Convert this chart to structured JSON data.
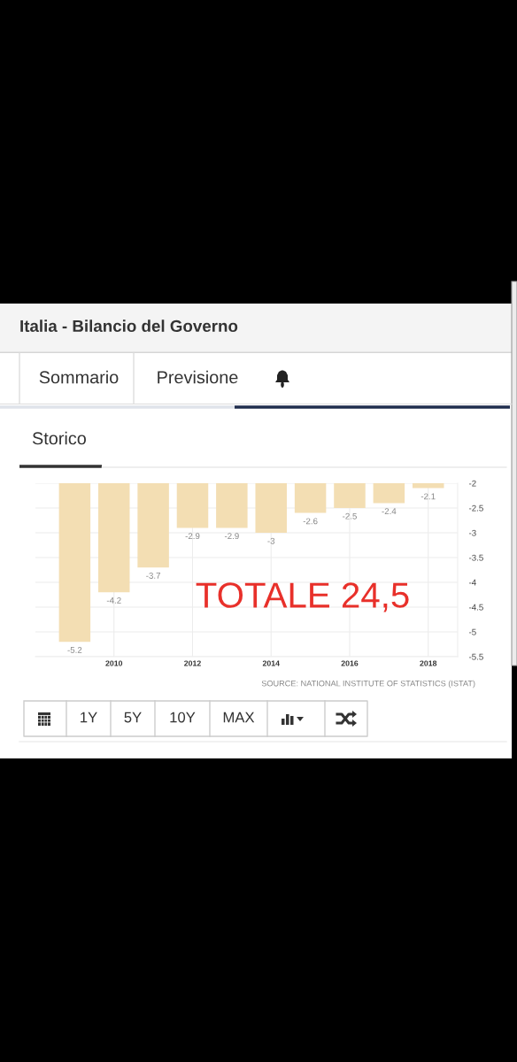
{
  "chart_data": {
    "type": "bar",
    "title": "Italia - Bilancio del Governo",
    "subtitle": "Storico",
    "x": [
      2009,
      2010,
      2011,
      2012,
      2013,
      2014,
      2015,
      2016,
      2017,
      2018
    ],
    "values": [
      -5.2,
      -4.2,
      -3.7,
      -2.9,
      -2.9,
      -3,
      -2.6,
      -2.5,
      -2.4,
      -2.1
    ],
    "color": "#f3deb3",
    "xlim": [
      2008,
      2018.75
    ],
    "xticks": [
      2010,
      2012,
      2014,
      2016,
      2018
    ],
    "ylim": [
      -5.5,
      -2
    ],
    "yticks": [
      -2,
      -2.5,
      -3,
      -3.5,
      -4,
      -4.5,
      -5,
      -5.5
    ],
    "grid": true,
    "data_labels": true,
    "annotations": [
      "Sommario",
      "Previsione",
      "TOTALE 24,5",
      "SOURCE: NATIONAL INSTITUTE OF STATISTICS (ISTAT)",
      "1Y",
      "5Y",
      "10Y",
      "MAX"
    ]
  }
}
